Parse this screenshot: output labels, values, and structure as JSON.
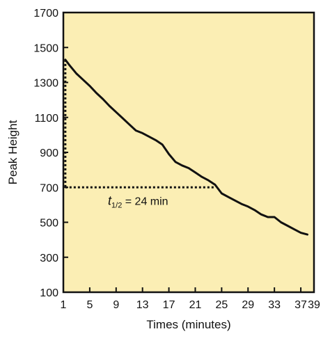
{
  "chart_data": {
    "type": "line",
    "title": "",
    "xlabel": "Times (minutes)",
    "ylabel": "Peak Height",
    "xlim": [
      1,
      39
    ],
    "ylim": [
      100,
      1700
    ],
    "xticks": [
      1,
      5,
      9,
      13,
      17,
      21,
      25,
      29,
      33,
      37,
      39
    ],
    "yticks": [
      100,
      300,
      500,
      700,
      900,
      1100,
      1300,
      1500,
      1700
    ],
    "grid": false,
    "legend": "none",
    "background_color": "#fbeeb4",
    "line_color": "#111111",
    "series": [
      {
        "x": [
          1.3,
          2,
          3,
          4,
          5,
          6,
          7,
          8,
          9,
          10,
          11,
          12,
          13,
          14,
          15,
          16,
          17,
          18,
          19,
          20,
          21,
          22,
          23,
          24,
          25,
          26,
          27,
          28,
          29,
          30,
          31,
          32,
          33,
          34,
          35,
          36,
          37,
          38
        ],
        "values": [
          1430,
          1395,
          1350,
          1315,
          1280,
          1240,
          1205,
          1165,
          1130,
          1095,
          1060,
          1025,
          1010,
          990,
          970,
          945,
          890,
          845,
          825,
          810,
          785,
          760,
          740,
          715,
          665,
          645,
          625,
          605,
          590,
          570,
          545,
          530,
          530,
          500,
          480,
          460,
          440,
          430
        ]
      }
    ],
    "annotation": {
      "t_symbol": "t",
      "t_subscript": "1/2",
      "text": " = 24 min",
      "x": 24,
      "y": 700,
      "start_x": 1.3,
      "start_y": 1430
    }
  }
}
